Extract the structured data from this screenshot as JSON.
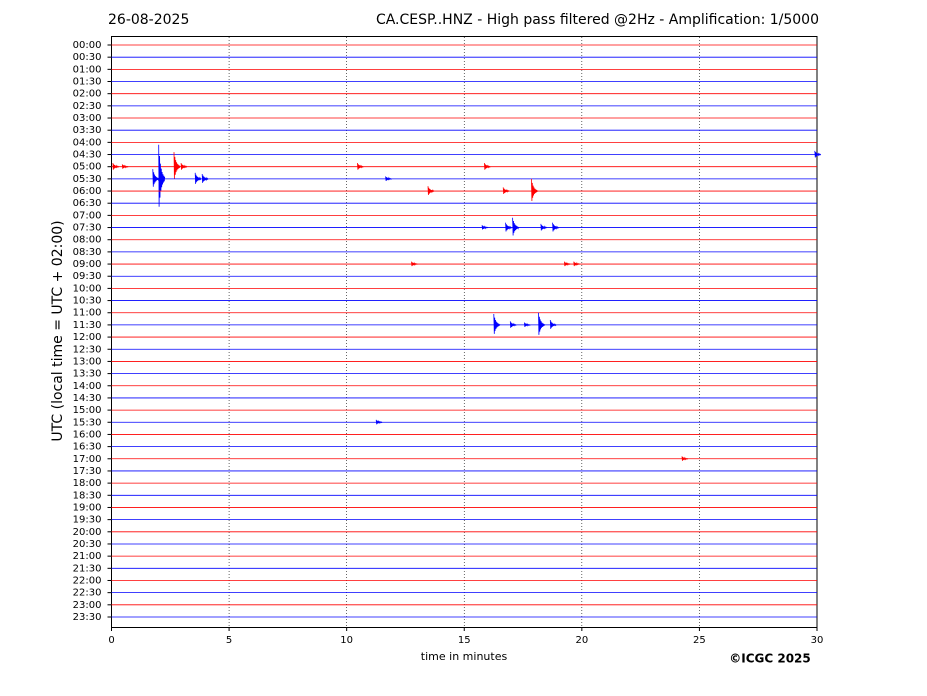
{
  "chart_data": {
    "type": "helicorder",
    "date": "26-08-2025",
    "title": "CA.CESP..HNZ - High pass filtered @2Hz - Amplification: 1/5000",
    "xlabel": "time in minutes",
    "ylabel": "UTC (local time = UTC + 02:00)",
    "copyright": "©ICGC 2025",
    "xlim": [
      0,
      30
    ],
    "xticks": [
      0,
      5,
      10,
      15,
      20,
      25,
      30
    ],
    "grid": true,
    "colors": [
      "#ff0000",
      "#0000ff"
    ],
    "series": [
      {
        "name": "00:00",
        "bursts": []
      },
      {
        "name": "00:30",
        "bursts": []
      },
      {
        "name": "01:00",
        "bursts": []
      },
      {
        "name": "01:30",
        "bursts": []
      },
      {
        "name": "02:00",
        "bursts": []
      },
      {
        "name": "02:30",
        "bursts": []
      },
      {
        "name": "03:00",
        "bursts": []
      },
      {
        "name": "03:30",
        "bursts": []
      },
      {
        "name": "04:00",
        "bursts": []
      },
      {
        "name": "04:30",
        "bursts": [
          {
            "x": 29.95,
            "amplitude": 0.3
          }
        ]
      },
      {
        "name": "05:00",
        "bursts": [
          {
            "x": 0.1,
            "amplitude": 0.3
          },
          {
            "x": 0.5,
            "amplitude": 0.2
          },
          {
            "x": 2.7,
            "amplitude": 1.2
          },
          {
            "x": 3.0,
            "amplitude": 0.3
          },
          {
            "x": 10.5,
            "amplitude": 0.3
          },
          {
            "x": 15.9,
            "amplitude": 0.3
          }
        ]
      },
      {
        "name": "05:30",
        "bursts": [
          {
            "x": 1.8,
            "amplitude": 0.8
          },
          {
            "x": 2.05,
            "amplitude": 2.8
          },
          {
            "x": 3.6,
            "amplitude": 0.5
          },
          {
            "x": 3.9,
            "amplitude": 0.4
          },
          {
            "x": 11.7,
            "amplitude": 0.2
          }
        ]
      },
      {
        "name": "06:00",
        "bursts": [
          {
            "x": 13.5,
            "amplitude": 0.4
          },
          {
            "x": 16.7,
            "amplitude": 0.3
          },
          {
            "x": 17.9,
            "amplitude": 1.0
          }
        ]
      },
      {
        "name": "06:30",
        "bursts": []
      },
      {
        "name": "07:00",
        "bursts": []
      },
      {
        "name": "07:30",
        "bursts": [
          {
            "x": 15.8,
            "amplitude": 0.2
          },
          {
            "x": 16.8,
            "amplitude": 0.4
          },
          {
            "x": 17.1,
            "amplitude": 0.8
          },
          {
            "x": 18.3,
            "amplitude": 0.3
          },
          {
            "x": 18.8,
            "amplitude": 0.4
          }
        ]
      },
      {
        "name": "08:00",
        "bursts": []
      },
      {
        "name": "08:30",
        "bursts": []
      },
      {
        "name": "09:00",
        "bursts": [
          {
            "x": 12.8,
            "amplitude": 0.2
          },
          {
            "x": 19.3,
            "amplitude": 0.2
          },
          {
            "x": 19.7,
            "amplitude": 0.2
          }
        ]
      },
      {
        "name": "09:30",
        "bursts": []
      },
      {
        "name": "10:00",
        "bursts": []
      },
      {
        "name": "10:30",
        "bursts": []
      },
      {
        "name": "11:00",
        "bursts": []
      },
      {
        "name": "11:30",
        "bursts": [
          {
            "x": 16.3,
            "amplitude": 0.9
          },
          {
            "x": 17.0,
            "amplitude": 0.3
          },
          {
            "x": 17.6,
            "amplitude": 0.2
          },
          {
            "x": 18.2,
            "amplitude": 1.0
          },
          {
            "x": 18.7,
            "amplitude": 0.4
          }
        ]
      },
      {
        "name": "12:00",
        "bursts": []
      },
      {
        "name": "12:30",
        "bursts": []
      },
      {
        "name": "13:00",
        "bursts": []
      },
      {
        "name": "13:30",
        "bursts": []
      },
      {
        "name": "14:00",
        "bursts": []
      },
      {
        "name": "14:30",
        "bursts": []
      },
      {
        "name": "15:00",
        "bursts": []
      },
      {
        "name": "15:30",
        "bursts": [
          {
            "x": 11.3,
            "amplitude": 0.2
          }
        ]
      },
      {
        "name": "16:00",
        "bursts": []
      },
      {
        "name": "16:30",
        "bursts": []
      },
      {
        "name": "17:00",
        "bursts": [
          {
            "x": 24.3,
            "amplitude": 0.2
          }
        ]
      },
      {
        "name": "17:30",
        "bursts": []
      },
      {
        "name": "18:00",
        "bursts": []
      },
      {
        "name": "18:30",
        "bursts": []
      },
      {
        "name": "19:00",
        "bursts": []
      },
      {
        "name": "19:30",
        "bursts": []
      },
      {
        "name": "20:00",
        "bursts": []
      },
      {
        "name": "20:30",
        "bursts": []
      },
      {
        "name": "21:00",
        "bursts": []
      },
      {
        "name": "21:30",
        "bursts": []
      },
      {
        "name": "22:00",
        "bursts": []
      },
      {
        "name": "22:30",
        "bursts": []
      },
      {
        "name": "23:00",
        "bursts": []
      },
      {
        "name": "23:30",
        "bursts": []
      }
    ]
  }
}
